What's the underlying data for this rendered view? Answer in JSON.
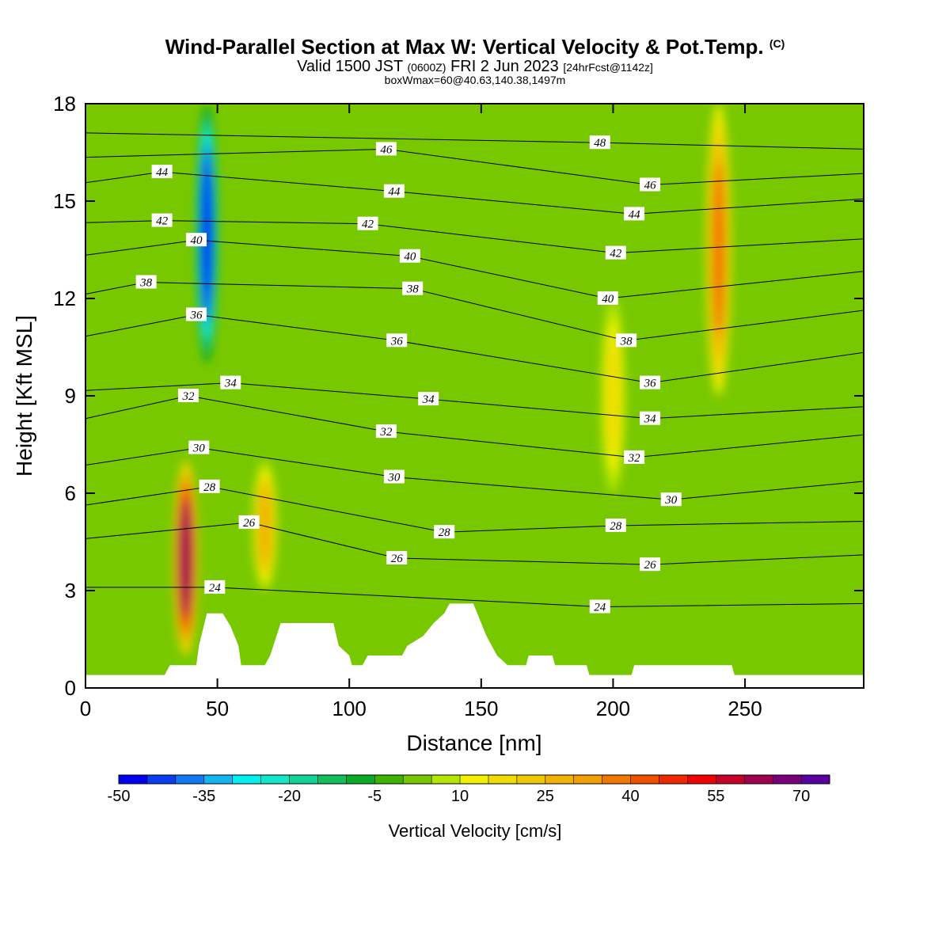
{
  "header": {
    "title": "Wind-Parallel Section at Max W: Vertical Velocity & Pot.Temp.",
    "copyright": "(C)",
    "valid_prefix": "Valid 1500 JST",
    "valid_zulu": "(0600Z)",
    "valid_date": "FRI 2 Jun 2023",
    "forecast_info": "[24hrFcst@1142z]",
    "box_info": "boxWmax=60@40.63,140.38,1497m"
  },
  "chart_data": {
    "type": "heatmap",
    "xlabel": "Distance [nm]",
    "ylabel": "Height [Kft MSL]",
    "xlim": [
      0,
      295
    ],
    "ylim": [
      0,
      18
    ],
    "x_ticks": [
      0,
      50,
      100,
      150,
      200,
      250
    ],
    "y_ticks": [
      0,
      3,
      6,
      9,
      12,
      15,
      18
    ],
    "colorbar": {
      "title": "Vertical Velocity [cm/s]",
      "levels": [
        -50,
        -45,
        -40,
        -35,
        -30,
        -25,
        -20,
        -15,
        -10,
        -5,
        0,
        5,
        10,
        15,
        20,
        25,
        30,
        35,
        40,
        45,
        50,
        55,
        60,
        65,
        70,
        75
      ],
      "tick_labels": [
        -50,
        -35,
        -20,
        -5,
        10,
        25,
        40,
        55,
        70
      ],
      "colors": [
        "#0000f0",
        "#0a3cf0",
        "#1478f0",
        "#14b4f0",
        "#00f0f0",
        "#14e6c8",
        "#14d296",
        "#14be5a",
        "#0aaa28",
        "#3cb400",
        "#78c800",
        "#b4e600",
        "#f0f000",
        "#f0dc00",
        "#f0c800",
        "#f0b400",
        "#f0a000",
        "#f07800",
        "#f05000",
        "#f02800",
        "#f00000",
        "#c80028",
        "#a00050",
        "#780078",
        "#5a00a0"
      ]
    },
    "features": [
      {
        "kind": "downdraft",
        "x_nm": 46,
        "z_kft_top": 18,
        "z_kft_bottom": 10,
        "w_min_cm_s": -50
      },
      {
        "kind": "updraft",
        "x_nm": 38,
        "z_kft_top": 7,
        "z_kft_bottom": 1,
        "w_max_cm_s": 60
      },
      {
        "kind": "updraft",
        "x_nm": 68,
        "z_kft_top": 7,
        "z_kft_bottom": 3,
        "w_max_cm_s": 25
      },
      {
        "kind": "updraft",
        "x_nm": 240,
        "z_kft_top": 18,
        "z_kft_bottom": 9,
        "w_max_cm_s": 35
      },
      {
        "kind": "updraft",
        "x_nm": 200,
        "z_kft_top": 12,
        "z_kft_bottom": 6,
        "w_max_cm_s": 15
      }
    ],
    "terrain_kft": [
      [
        0,
        0.4
      ],
      [
        30,
        0.4
      ],
      [
        32,
        0.7
      ],
      [
        42,
        0.7
      ],
      [
        43,
        1.3
      ],
      [
        46,
        2.3
      ],
      [
        52,
        2.3
      ],
      [
        55,
        1.9
      ],
      [
        58,
        1.3
      ],
      [
        59,
        0.7
      ],
      [
        68,
        0.7
      ],
      [
        70,
        1.0
      ],
      [
        72,
        1.5
      ],
      [
        74,
        2.0
      ],
      [
        94,
        2.0
      ],
      [
        96,
        1.3
      ],
      [
        100,
        1.0
      ],
      [
        101,
        0.7
      ],
      [
        105,
        0.7
      ],
      [
        107,
        1.0
      ],
      [
        120,
        1.0
      ],
      [
        122,
        1.3
      ],
      [
        128,
        1.6
      ],
      [
        132,
        2.0
      ],
      [
        136,
        2.3
      ],
      [
        138,
        2.6
      ],
      [
        147,
        2.6
      ],
      [
        150,
        2.0
      ],
      [
        152,
        1.6
      ],
      [
        156,
        1.0
      ],
      [
        160,
        0.7
      ],
      [
        167,
        0.7
      ],
      [
        168,
        1.0
      ],
      [
        177,
        1.0
      ],
      [
        178,
        0.7
      ],
      [
        190,
        0.7
      ],
      [
        191,
        0.4
      ],
      [
        207,
        0.4
      ],
      [
        208,
        0.7
      ],
      [
        245,
        0.7
      ],
      [
        246,
        0.4
      ],
      [
        295,
        0.4
      ]
    ],
    "isentrope_labels": [
      {
        "text": "44",
        "x": 29,
        "z": 15.9
      },
      {
        "text": "42",
        "x": 29,
        "z": 14.4
      },
      {
        "text": "40",
        "x": 42,
        "z": 13.8
      },
      {
        "text": "38",
        "x": 23,
        "z": 12.5
      },
      {
        "text": "36",
        "x": 42,
        "z": 11.5
      },
      {
        "text": "34",
        "x": 55,
        "z": 9.4
      },
      {
        "text": "32",
        "x": 39,
        "z": 9.0
      },
      {
        "text": "30",
        "x": 43,
        "z": 7.4
      },
      {
        "text": "28",
        "x": 47,
        "z": 6.2
      },
      {
        "text": "26",
        "x": 62,
        "z": 5.1
      },
      {
        "text": "24",
        "x": 49,
        "z": 3.1
      },
      {
        "text": "46",
        "x": 114,
        "z": 16.6
      },
      {
        "text": "44",
        "x": 117,
        "z": 15.3
      },
      {
        "text": "42",
        "x": 107,
        "z": 14.3
      },
      {
        "text": "40",
        "x": 123,
        "z": 13.3
      },
      {
        "text": "38",
        "x": 124,
        "z": 12.3
      },
      {
        "text": "36",
        "x": 118,
        "z": 10.7
      },
      {
        "text": "34",
        "x": 130,
        "z": 8.9
      },
      {
        "text": "32",
        "x": 114,
        "z": 7.9
      },
      {
        "text": "30",
        "x": 117,
        "z": 6.5
      },
      {
        "text": "28",
        "x": 136,
        "z": 4.8
      },
      {
        "text": "26",
        "x": 118,
        "z": 4.0
      },
      {
        "text": "48",
        "x": 195,
        "z": 16.8
      },
      {
        "text": "46",
        "x": 214,
        "z": 15.5
      },
      {
        "text": "44",
        "x": 208,
        "z": 14.6
      },
      {
        "text": "42",
        "x": 201,
        "z": 13.4
      },
      {
        "text": "40",
        "x": 198,
        "z": 12.0
      },
      {
        "text": "38",
        "x": 205,
        "z": 10.7
      },
      {
        "text": "36",
        "x": 214,
        "z": 9.4
      },
      {
        "text": "34",
        "x": 214,
        "z": 8.3
      },
      {
        "text": "32",
        "x": 208,
        "z": 7.1
      },
      {
        "text": "30",
        "x": 222,
        "z": 5.8
      },
      {
        "text": "28",
        "x": 201,
        "z": 5.0
      },
      {
        "text": "26",
        "x": 214,
        "z": 3.8
      },
      {
        "text": "24",
        "x": 195,
        "z": 2.5
      }
    ]
  }
}
